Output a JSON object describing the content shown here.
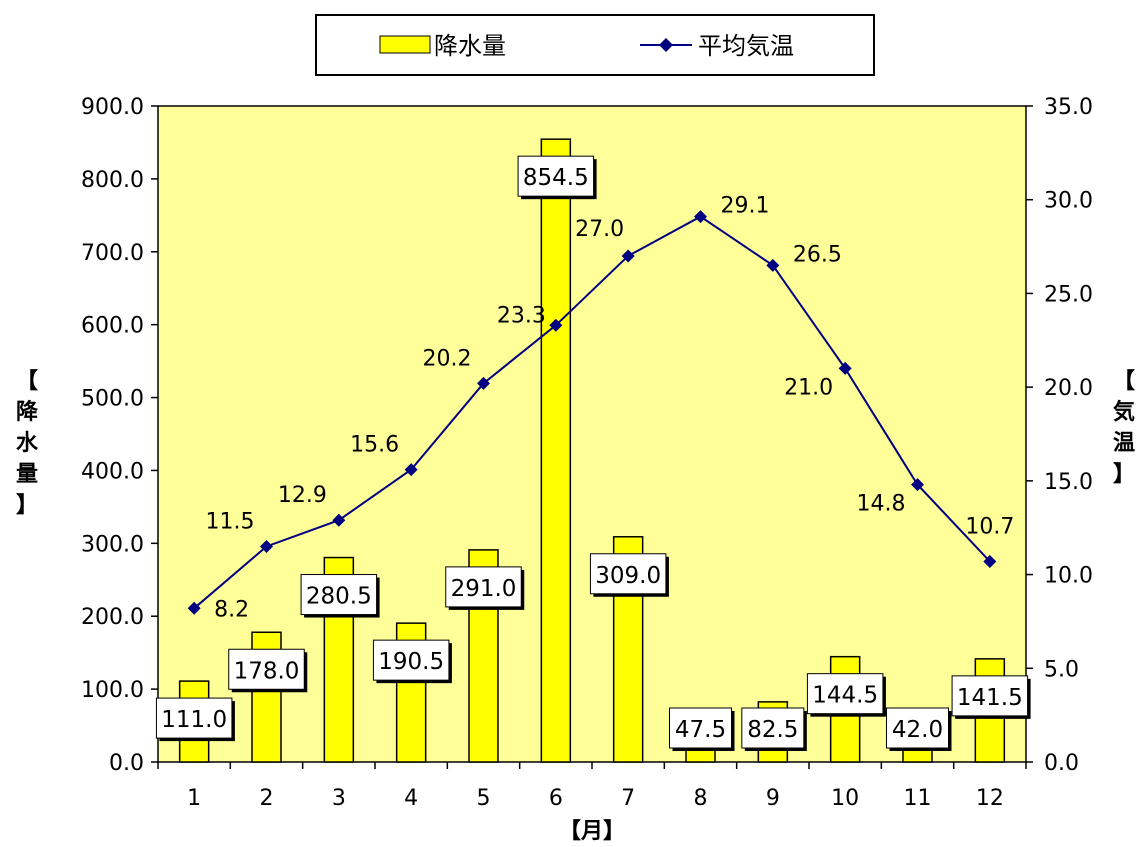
{
  "chart_data": {
    "type": "bar",
    "categories": [
      "1",
      "2",
      "3",
      "4",
      "5",
      "6",
      "7",
      "8",
      "9",
      "10",
      "11",
      "12"
    ],
    "xlabel": "【月】",
    "ylabel_left": [
      "【",
      "降",
      "水",
      "量",
      "】"
    ],
    "ylabel_right": [
      "【",
      "気",
      "温",
      "】"
    ],
    "y_left": {
      "min": 0,
      "max": 900,
      "step": 100,
      "tick_labels": [
        "0.0",
        "100.0",
        "200.0",
        "300.0",
        "400.0",
        "500.0",
        "600.0",
        "700.0",
        "800.0",
        "900.0"
      ]
    },
    "y_right": {
      "min": 0,
      "max": 35,
      "step": 5,
      "tick_labels": [
        "0.0",
        "5.0",
        "10.0",
        "15.0",
        "20.0",
        "25.0",
        "30.0",
        "35.0"
      ]
    },
    "series": [
      {
        "name": "降水量",
        "type": "bar",
        "axis": "left",
        "color": "#ffff00",
        "values": [
          111.0,
          178.0,
          280.5,
          190.5,
          291.0,
          854.5,
          309.0,
          47.5,
          82.5,
          144.5,
          42.0,
          141.5
        ],
        "labels": [
          "111.0",
          "178.0",
          "280.5",
          "190.5",
          "291.0",
          "854.5",
          "309.0",
          "47.5",
          "82.5",
          "144.5",
          "42.0",
          "141.5"
        ]
      },
      {
        "name": "平均気温",
        "type": "line",
        "axis": "right",
        "color": "#000080",
        "values": [
          8.2,
          11.5,
          12.9,
          15.6,
          20.2,
          23.3,
          27.0,
          29.1,
          26.5,
          21.0,
          14.8,
          10.7
        ],
        "labels": [
          "8.2",
          "11.5",
          "12.9",
          "15.6",
          "20.2",
          "23.3",
          "27.0",
          "29.1",
          "26.5",
          "21.0",
          "14.8",
          "10.7"
        ]
      }
    ],
    "plot_background": "#ffff99",
    "legend_position": "top",
    "grid": false
  }
}
